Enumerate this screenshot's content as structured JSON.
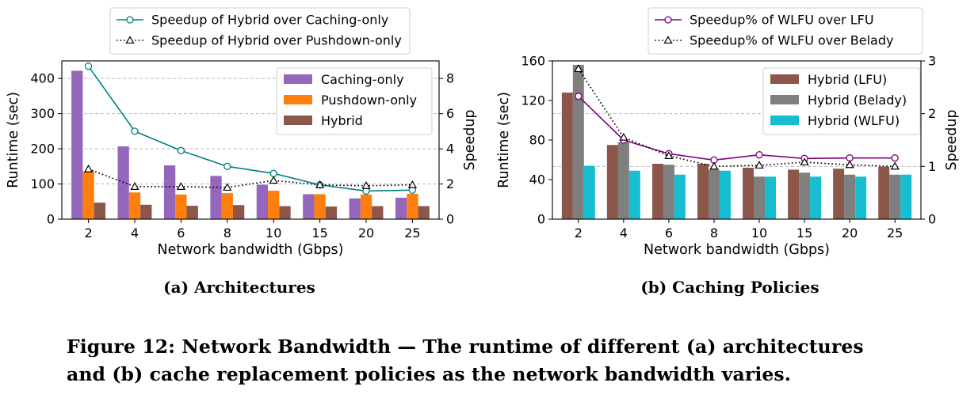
{
  "chart_data": [
    {
      "type": "bar+line",
      "subcaption": "(a) Architectures",
      "categories": [
        "2",
        "4",
        "6",
        "8",
        "10",
        "15",
        "20",
        "25"
      ],
      "xlabel": "Network bandwidth (Gbps)",
      "ylabel": "Runtime (sec)",
      "y2label": "Speedup",
      "ylim": [
        0,
        450
      ],
      "yticks": [
        0,
        100,
        200,
        300,
        400
      ],
      "y2lim": [
        0,
        9
      ],
      "y2ticks": [
        0,
        2,
        4,
        6,
        8
      ],
      "grid": true,
      "bar_legend_position": "upper-right-inside",
      "line_legend_position": "above",
      "bar_series": [
        {
          "name": "Caching-only",
          "color": "#9467bd",
          "values": [
            422,
            207,
            153,
            123,
            98,
            71,
            59,
            61
          ]
        },
        {
          "name": "Pushdown-only",
          "color": "#ff7f0e",
          "values": [
            136,
            76,
            70,
            74,
            81,
            71,
            70,
            72
          ]
        },
        {
          "name": "Hybrid",
          "color": "#8c564b",
          "values": [
            47,
            41,
            38,
            40,
            37,
            36,
            37,
            37
          ]
        }
      ],
      "line_series": [
        {
          "name": "Speedup of Hybrid over Caching-only",
          "color": "#008080",
          "style": "solid",
          "marker": "circle",
          "values": [
            8.7,
            5.0,
            3.9,
            3.0,
            2.6,
            1.95,
            1.6,
            1.65
          ]
        },
        {
          "name": "Speedup of Hybrid over Pushdown-only",
          "color": "#000000",
          "style": "dotted",
          "marker": "triangle",
          "values": [
            2.85,
            1.85,
            1.85,
            1.8,
            2.2,
            1.95,
            1.9,
            1.95
          ]
        }
      ]
    },
    {
      "type": "bar+line",
      "subcaption": "(b) Caching Policies",
      "categories": [
        "2",
        "4",
        "6",
        "8",
        "10",
        "15",
        "20",
        "25"
      ],
      "xlabel": "Network bandwidth (Gbps)",
      "ylabel": "Runtime (sec)",
      "y2label": "Speedup",
      "ylim": [
        0,
        160
      ],
      "yticks": [
        0,
        40,
        80,
        120,
        160
      ],
      "y2lim": [
        0,
        3
      ],
      "y2ticks": [
        0,
        1,
        2,
        3
      ],
      "grid": true,
      "bar_legend_position": "upper-right-inside",
      "line_legend_position": "above",
      "bar_series": [
        {
          "name": "Hybrid (LFU)",
          "color": "#8c564b",
          "values": [
            128,
            75,
            56,
            56,
            52,
            50,
            51,
            53
          ]
        },
        {
          "name": "Hybrid (Belady)",
          "color": "#7f7f7f",
          "values": [
            156,
            78,
            55,
            50,
            43,
            47,
            45,
            45
          ]
        },
        {
          "name": "Hybrid (WLFU)",
          "color": "#17becf",
          "values": [
            54,
            49,
            45,
            49,
            43,
            43,
            43,
            45
          ]
        }
      ],
      "line_series": [
        {
          "name": "Speedup% of WLFU over LFU",
          "color": "#800080",
          "style": "solid",
          "marker": "circle",
          "values": [
            2.33,
            1.5,
            1.24,
            1.12,
            1.22,
            1.15,
            1.16,
            1.16
          ]
        },
        {
          "name": "Speedup% of WLFU over Belady",
          "color": "#000000",
          "style": "dotted",
          "marker": "triangle",
          "values": [
            2.85,
            1.55,
            1.2,
            1.0,
            1.02,
            1.08,
            1.03,
            1.0
          ]
        }
      ]
    }
  ],
  "figure_caption": {
    "line1": "Figure 12: Network Bandwidth — The runtime of different (a) architectures",
    "line2": "and (b) cache replacement policies as the network bandwidth varies."
  }
}
